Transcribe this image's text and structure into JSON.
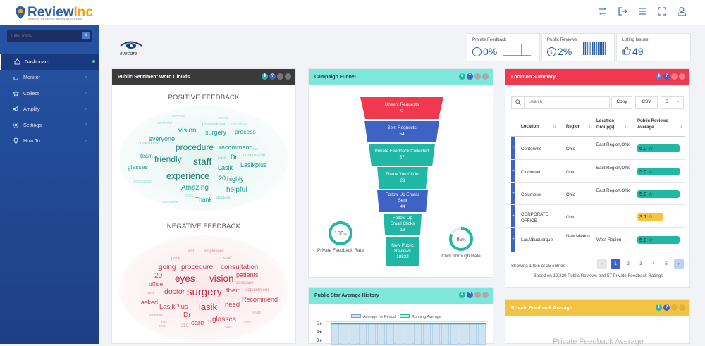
{
  "app": {
    "logo_text_a": "Review",
    "logo_text_b": "Inc",
    "logo_tagline": "WHERE REVIEWS MEAN BUSINESS",
    "client_logo": "eyecare"
  },
  "topbar_icons": [
    "transfer-icon",
    "logout-icon",
    "menu-icon",
    "fullscreen-icon",
    "user-icon"
  ],
  "sidebar": {
    "filter_placeholder": "Filter menu",
    "filter_clear": "✕",
    "items": [
      {
        "label": "Dashboard",
        "icon": "home-icon",
        "active": true
      },
      {
        "label": "Monitor",
        "icon": "chart-icon",
        "active": false
      },
      {
        "label": "Collect",
        "icon": "star-icon",
        "active": false
      },
      {
        "label": "Amplify",
        "icon": "megaphone-icon",
        "active": false
      },
      {
        "label": "Settings",
        "icon": "gear-icon",
        "active": false
      },
      {
        "label": "How To",
        "icon": "lightbulb-icon",
        "active": false
      }
    ]
  },
  "kpis": [
    {
      "title": "Private Feedback",
      "value": "0%",
      "icon": "arrow-up-circle-icon"
    },
    {
      "title": "Public Reviews",
      "value": "2%",
      "icon": "arrow-down-circle-icon"
    },
    {
      "title": "Listing Issues",
      "value": "49",
      "icon": "thumbs-up-icon"
    }
  ],
  "sentiment": {
    "title": "Public Sentiment Word Clouds",
    "positive_title": "POSITIVE FEEDBACK",
    "negative_title": "NEGATIVE FEEDBACK",
    "positive_words": [
      "vision",
      "surgery",
      "process",
      "everyone",
      "procedure",
      "recommend",
      "team",
      "friendly",
      "staff",
      "Dr",
      "Lasikplus",
      "glasses",
      "Lasik",
      "experience",
      "20",
      "highly",
      "Amazing",
      "helpful",
      "Thank",
      "professional",
      "questions",
      "wonderful",
      "nervous",
      "service",
      "comfortable",
      "doctors",
      "consultation",
      "awesome",
      "quick",
      "care",
      "everything",
      "nice"
    ],
    "negative_words": [
      "price",
      "am",
      "employees",
      "staff",
      "going",
      "procedure",
      "consultation",
      "patients",
      "office",
      "20",
      "eyes",
      "vision",
      "doctor",
      "surgery",
      "their",
      "appointment",
      "asked",
      "lasik",
      "need",
      "Recommend",
      "LasikPlus",
      "Dr",
      "care",
      "glasses",
      "company",
      "week",
      "schedule",
      "years",
      "250",
      "rude",
      "once",
      "calls",
      "pay",
      "see"
    ]
  },
  "funnel": {
    "title": "Campaign Funnel",
    "steps": [
      {
        "label": "Unsent Requests",
        "value": "0",
        "color": "#f0394f"
      },
      {
        "label": "Sent Requests",
        "value": "54",
        "color": "#3f63c4"
      },
      {
        "label": "Private Feedback Collected",
        "value": "57",
        "color": "#20b7a5"
      },
      {
        "label": "Thank You Clicks",
        "value": "29",
        "color": "#20b7a5"
      },
      {
        "label": "Follow Up Emails Sent",
        "value": "44",
        "color": "#3f63c4"
      },
      {
        "label": "Follow Up Email Clicks",
        "value": "18",
        "color": "#20b7a5"
      },
      {
        "label": "New Public Reviews",
        "value": "18822",
        "color": "#20b7a5"
      }
    ],
    "left_ring": {
      "value": "100",
      "suffix": "%",
      "pct": 100,
      "label": "Private Feedback Rate"
    },
    "right_ring": {
      "value": "82",
      "suffix": "%",
      "pct": 82,
      "label": "Click Through Rate"
    }
  },
  "history": {
    "title": "Public Star Average History",
    "legend": [
      "Average for Period",
      "Running Average"
    ],
    "y_ticks": [
      "5★",
      "4★",
      "3★"
    ]
  },
  "location": {
    "title": "Location Summary",
    "search_placeholder": "Search",
    "copy_label": "Copy",
    "csv_label": "CSV",
    "page_size": "5",
    "columns": [
      "Location",
      "Region",
      "Location Group(s)",
      "Public Reviews Average"
    ],
    "rows": [
      {
        "location": "Centerville",
        "region": "Ohio",
        "group": "East Region,Ohio",
        "avg": "5.0",
        "pct": 100,
        "color": "#20b7a5"
      },
      {
        "location": "Cincinnati",
        "region": "Ohio",
        "group": "East Region,Ohio",
        "avg": "5.0",
        "pct": 100,
        "color": "#20b7a5"
      },
      {
        "location": "Columbus",
        "region": "Ohio",
        "group": "East Region,Ohio",
        "avg": "5.0",
        "pct": 100,
        "color": "#20b7a5"
      },
      {
        "location": "CORPORATE OFFICE",
        "region": "Ohio",
        "group": "",
        "avg": "3.1",
        "pct": 62,
        "color": "#f5c342"
      },
      {
        "location": "LasAlbuquerque",
        "region": "New Mexico",
        "group": "West Region",
        "avg": "5.0",
        "pct": 100,
        "color": "#20b7a5"
      }
    ],
    "showing": "Showing 1 to 5 of 25 entries",
    "pages": [
      "‹",
      "1",
      "2",
      "3",
      "4",
      "5",
      "›"
    ],
    "based_on": "Based on 19,220 Public Reviews and 57 Private Feedback Ratings"
  },
  "private_avg": {
    "title": "Private Feedback Average",
    "body": "Private Feedback Average"
  },
  "colors": {
    "teal": "#20b7a5",
    "red": "#f0394f",
    "blue": "#3f63c4",
    "yellow": "#f5c342",
    "dark": "#3a3a3a"
  }
}
